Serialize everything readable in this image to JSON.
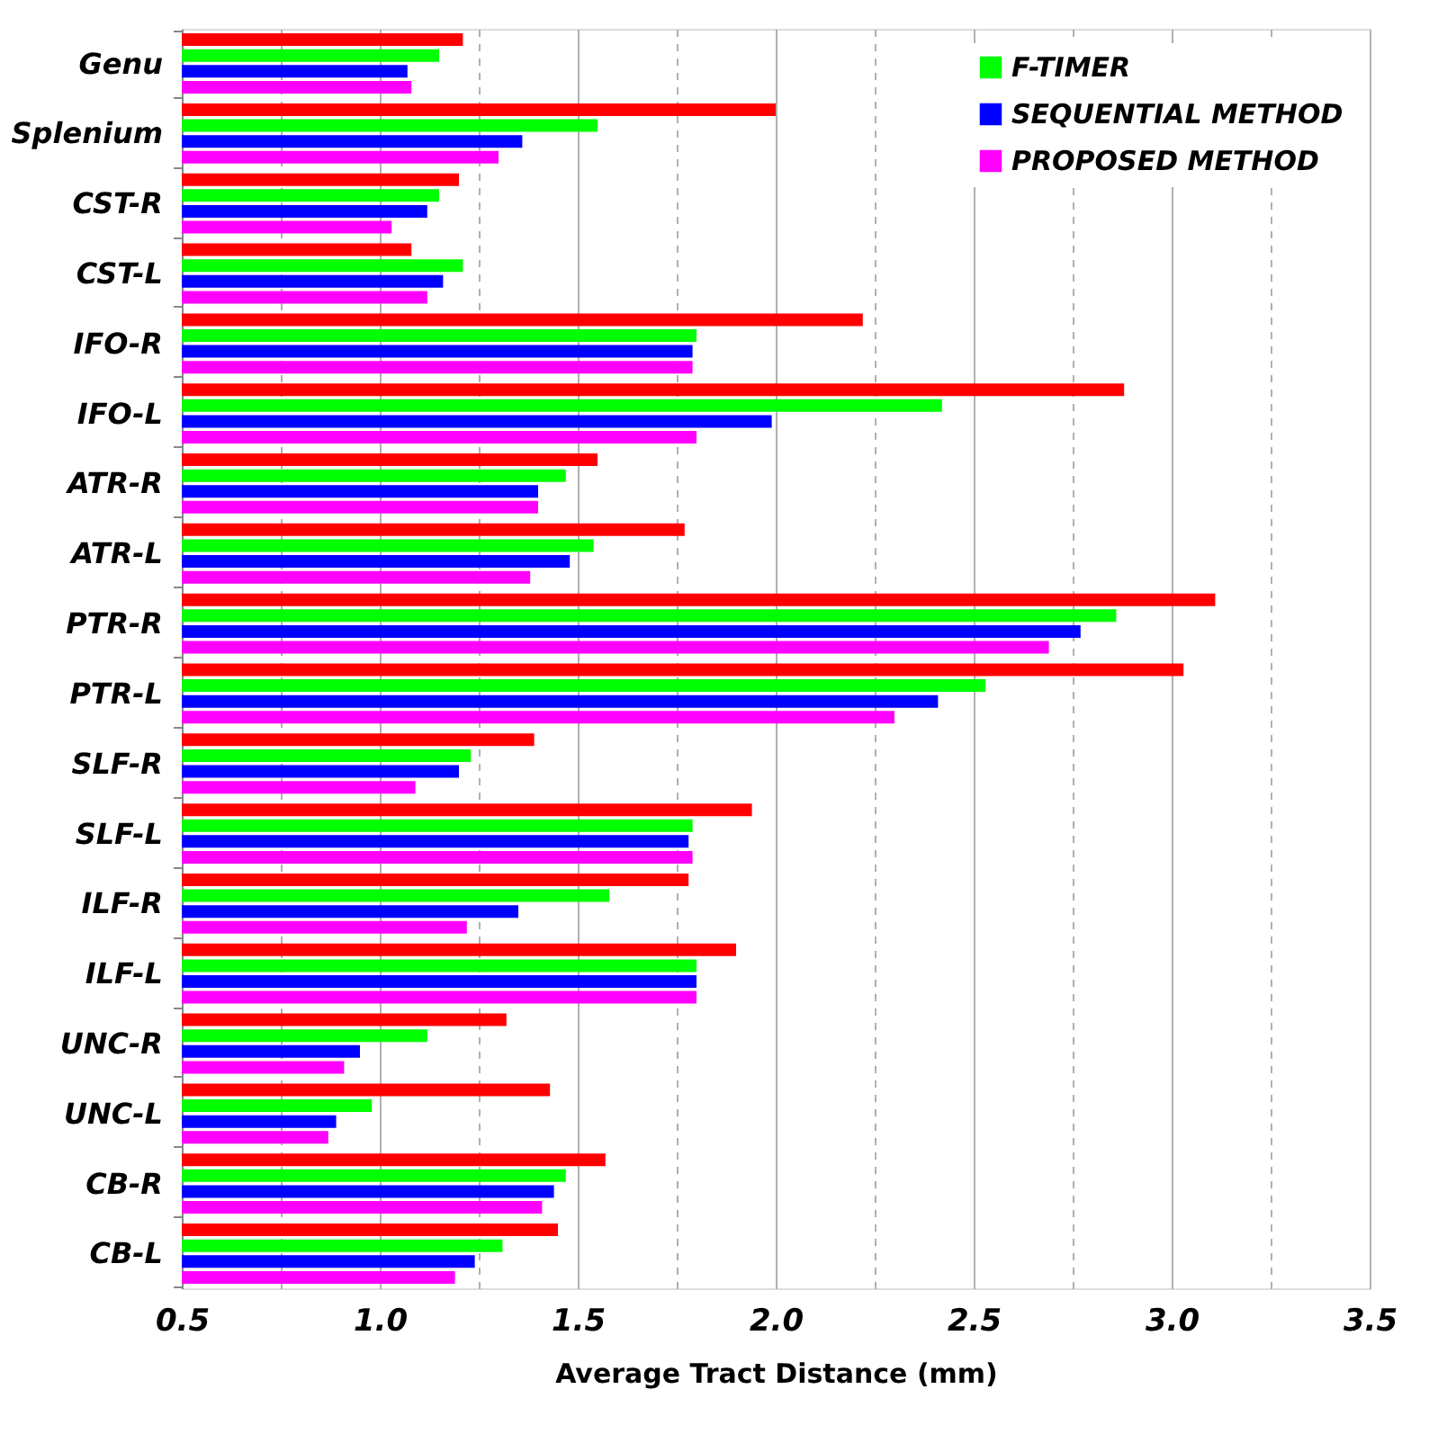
{
  "chart_data": {
    "type": "bar",
    "orientation": "horizontal",
    "xlabel": "Average Tract Distance (mm)",
    "categories": [
      "Genu",
      "Splenium",
      "CST-R",
      "CST-L",
      "IFO-R",
      "IFO-L",
      "ATR-R",
      "ATR-L",
      "PTR-R",
      "PTR-L",
      "SLF-R",
      "SLF-L",
      "ILF-R",
      "ILF-L",
      "UNC-R",
      "UNC-L",
      "CB-R",
      "CB-L"
    ],
    "series": [
      {
        "color": "#ff0000",
        "values": [
          1.21,
          2.0,
          1.2,
          1.08,
          2.22,
          2.88,
          1.55,
          1.77,
          3.11,
          3.03,
          1.39,
          1.94,
          1.78,
          1.9,
          1.32,
          1.43,
          1.57,
          1.45
        ]
      },
      {
        "name": "F-TIMER",
        "color": "#00ff00",
        "values": [
          1.15,
          1.55,
          1.15,
          1.21,
          1.8,
          2.42,
          1.47,
          1.54,
          2.86,
          2.53,
          1.23,
          1.79,
          1.58,
          1.8,
          1.12,
          0.98,
          1.47,
          1.31
        ]
      },
      {
        "name": "SEQUENTIAL METHOD",
        "color": "#0000ff",
        "values": [
          1.07,
          1.36,
          1.12,
          1.16,
          1.79,
          1.99,
          1.4,
          1.48,
          2.77,
          2.41,
          1.2,
          1.78,
          1.35,
          1.8,
          0.95,
          0.89,
          1.44,
          1.24
        ]
      },
      {
        "name": "PROPOSED METHOD",
        "color": "#ff00ff",
        "values": [
          1.08,
          1.3,
          1.03,
          1.12,
          1.79,
          1.8,
          1.4,
          1.38,
          2.69,
          2.3,
          1.09,
          1.79,
          1.22,
          1.8,
          0.91,
          0.87,
          1.41,
          1.19
        ]
      }
    ],
    "xlim": [
      0.5,
      3.5
    ],
    "xticks": [
      {
        "value": 0.5,
        "label": "0.5"
      },
      {
        "value": 0.75,
        "label": null
      },
      {
        "value": 1,
        "label": "1.0"
      },
      {
        "value": 1.25,
        "label": null
      },
      {
        "value": 1.5,
        "label": "1.5"
      },
      {
        "value": 1.75,
        "label": null
      },
      {
        "value": 2,
        "label": "2.0"
      },
      {
        "value": 2.25,
        "label": null
      },
      {
        "value": 2.5,
        "label": "2.5"
      },
      {
        "value": 2.75,
        "label": null
      },
      {
        "value": 3,
        "label": "3.0"
      },
      {
        "value": 3.25,
        "label": null
      },
      {
        "value": 3.5,
        "label": "3.5"
      }
    ],
    "grid": "x",
    "legend": "top right"
  }
}
